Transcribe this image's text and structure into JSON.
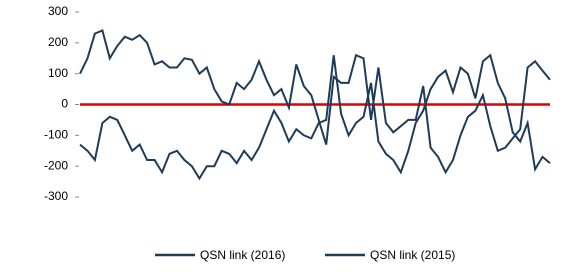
{
  "chart_data": {
    "type": "line",
    "categories": [
      null,
      null,
      null,
      null,
      null,
      null,
      null,
      null,
      null,
      null,
      null,
      null,
      null,
      null,
      null,
      null,
      null,
      null,
      null,
      null,
      null,
      null,
      null,
      null,
      null,
      null,
      null,
      null,
      null,
      null,
      null,
      null,
      null,
      null,
      null,
      null,
      null,
      null,
      null,
      null,
      null,
      null,
      null,
      null,
      null,
      null,
      null,
      null,
      null,
      null,
      null,
      null,
      null,
      null,
      null,
      null,
      null,
      null,
      null,
      null,
      null,
      null,
      null,
      null
    ],
    "series": [
      {
        "name": "QSN link (2016)",
        "color": "#1f3b5a",
        "values": [
          100,
          150,
          230,
          240,
          150,
          190,
          220,
          210,
          225,
          200,
          130,
          140,
          120,
          120,
          150,
          145,
          100,
          120,
          50,
          10,
          0,
          70,
          50,
          80,
          140,
          80,
          30,
          50,
          -10,
          130,
          60,
          30,
          -50,
          -130,
          90,
          70,
          70,
          160,
          150,
          -50,
          120,
          -60,
          -90,
          -70,
          -50,
          -50,
          60,
          -140,
          -170,
          -220,
          -180,
          -100,
          -40,
          -20,
          30,
          -70,
          -150,
          -140,
          -110,
          -80,
          120,
          140,
          110,
          80
        ]
      },
      {
        "name": "QSN link (2015)",
        "color": "#1f3b5a",
        "values": [
          -130,
          -150,
          -180,
          -60,
          -40,
          -50,
          -100,
          -150,
          -130,
          -180,
          -180,
          -220,
          -160,
          -150,
          -180,
          -200,
          -240,
          -200,
          -200,
          -150,
          -160,
          -190,
          -150,
          -180,
          -140,
          -80,
          -20,
          -60,
          -120,
          -80,
          -100,
          -110,
          -60,
          -50,
          160,
          -30,
          -100,
          -60,
          -40,
          70,
          -120,
          -160,
          -180,
          -220,
          -150,
          -60,
          -20,
          50,
          90,
          110,
          40,
          120,
          100,
          20,
          140,
          160,
          70,
          20,
          -90,
          -120,
          -60,
          -210,
          -170,
          -190
        ]
      }
    ],
    "ylim": [
      -300,
      300
    ],
    "yticks": [
      -300,
      -200,
      -100,
      0,
      100,
      200,
      300
    ],
    "zero_line_color": "#e00000"
  }
}
